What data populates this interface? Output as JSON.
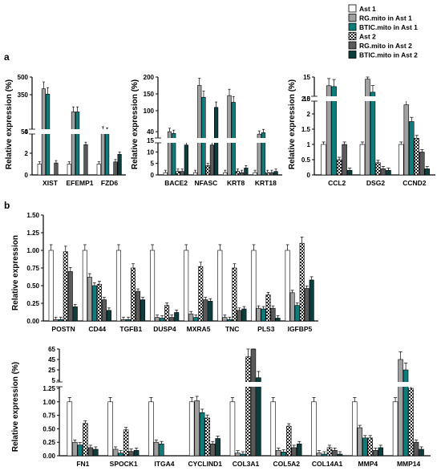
{
  "panel_labels": [
    "a",
    "b"
  ],
  "legend": {
    "items": [
      {
        "label": "Ast 1",
        "fill": "#ffffff",
        "pattern": "none"
      },
      {
        "label": "RG.mito in Ast 1",
        "fill": "#a0a0a0",
        "pattern": "none"
      },
      {
        "label": "BTIC.mito in Ast 1",
        "fill": "#0f7c7c",
        "pattern": "none"
      },
      {
        "label": "Ast 2",
        "fill": "#ffffff",
        "pattern": "check"
      },
      {
        "label": "RG.mito in Ast 2",
        "fill": "#5a5a5a",
        "pattern": "none"
      },
      {
        "label": "BTIC.mito in Ast 2",
        "fill": "#0d3d3d",
        "pattern": "none"
      }
    ]
  },
  "chart_data": [
    {
      "type": "bar",
      "panel": "a",
      "ylabel": "Relative expression (%)",
      "categories": [
        "XIST",
        "EFEMP1",
        "FZD6"
      ],
      "series": [
        {
          "name": "Ast 1",
          "values": [
            1,
            1,
            1
          ]
        },
        {
          "name": "RG.mito in Ast 1",
          "values": [
            400,
            210,
            60
          ]
        },
        {
          "name": "BTIC.mito in Ast 1",
          "values": [
            355,
            210,
            52
          ]
        },
        {
          "name": "Ast 2",
          "values": [
            0,
            0,
            0
          ]
        },
        {
          "name": "RG.mito in Ast 2",
          "values": [
            1.1,
            2.8,
            1.2
          ]
        },
        {
          "name": "BTIC.mito in Ast 2",
          "values": [
            0,
            0,
            1.9
          ]
        }
      ],
      "yticks": [
        "0",
        "2",
        "4",
        "50",
        "350",
        "500"
      ],
      "broken_axis": true
    },
    {
      "type": "bar",
      "panel": "a",
      "ylabel": "Relative expression (%)",
      "categories": [
        "BACE2",
        "NFASC",
        "KRT8",
        "KRT18"
      ],
      "series": [
        {
          "name": "Ast 1",
          "values": [
            1,
            1,
            1,
            1
          ]
        },
        {
          "name": "RG.mito in Ast 1",
          "values": [
            40,
            175,
            145,
            33
          ]
        },
        {
          "name": "BTIC.mito in Ast 1",
          "values": [
            35,
            140,
            125,
            37
          ]
        },
        {
          "name": "Ast 2",
          "values": [
            1.5,
            4,
            1.5,
            1
          ]
        },
        {
          "name": "RG.mito in Ast 2",
          "values": [
            1.5,
            13,
            1,
            1
          ]
        },
        {
          "name": "BTIC.mito in Ast 2",
          "values": [
            13,
            110,
            3,
            1.5
          ]
        }
      ],
      "yticks": [
        "0",
        "5",
        "10",
        "15",
        "40",
        "100",
        "150",
        "200"
      ],
      "broken_axis": true
    },
    {
      "type": "bar",
      "panel": "a",
      "ylabel": "Relative expression (%)",
      "categories": [
        "CCL2",
        "DSG2",
        "CCND2"
      ],
      "series": [
        {
          "name": "Ast 1",
          "values": [
            1,
            1,
            1
          ]
        },
        {
          "name": "RG.mito in Ast 1",
          "values": [
            13,
            14.5,
            2.3
          ]
        },
        {
          "name": "BTIC.mito in Ast 1",
          "values": [
            12.8,
            11.5,
            1.75
          ]
        },
        {
          "name": "Ast 2",
          "values": [
            0.5,
            0.4,
            1.2
          ]
        },
        {
          "name": "RG.mito in Ast 2",
          "values": [
            1,
            0.2,
            0.75
          ]
        },
        {
          "name": "BTIC.mito in Ast 2",
          "values": [
            0.15,
            0.15,
            0.2
          ]
        }
      ],
      "yticks": [
        "0",
        "0.5",
        "1",
        "1.5",
        "2",
        "2.5",
        "10",
        "15"
      ],
      "broken_axis": true
    },
    {
      "type": "bar",
      "panel": "b",
      "ylabel": "Relative expression",
      "categories": [
        "POSTN",
        "CD44",
        "TGFB1",
        "DUSP4",
        "MXRA5",
        "TNC",
        "PLS3",
        "IGFBP5"
      ],
      "series": [
        {
          "name": "Ast 1",
          "values": [
            1,
            1,
            1,
            1,
            1,
            1,
            1,
            1
          ]
        },
        {
          "name": "RG.mito in Ast 1",
          "values": [
            0.02,
            0.62,
            0.02,
            0.05,
            0.1,
            0.05,
            0.18,
            0.4
          ]
        },
        {
          "name": "BTIC.mito in Ast 1",
          "values": [
            0.02,
            0.5,
            0.02,
            0.04,
            0.05,
            0.02,
            0.17,
            0.22
          ]
        },
        {
          "name": "Ast 2",
          "values": [
            0.98,
            0.52,
            0.75,
            0.22,
            0.77,
            0.75,
            0.37,
            1.1
          ]
        },
        {
          "name": "RG.mito in Ast 2",
          "values": [
            0.7,
            0.3,
            0.42,
            0.05,
            0.3,
            0.15,
            0.18,
            0.46
          ]
        },
        {
          "name": "BTIC.mito in Ast 2",
          "values": [
            0.2,
            0.15,
            0.3,
            0.12,
            0.28,
            0.17,
            0.04,
            0.58
          ]
        }
      ],
      "yticks": [
        "0.00",
        "0.25",
        "0.50",
        "0.75",
        "1.00",
        "1.25",
        "1.50"
      ],
      "ylim": [
        0,
        1.5
      ]
    },
    {
      "type": "bar",
      "panel": "b",
      "ylabel": "Relative expression (%)",
      "categories": [
        "FN1",
        "SPOCK1",
        "ITGA4",
        "CYCLIND1",
        "COL3A1",
        "COL5A2",
        "COL14A1",
        "MMP4",
        "MMP14"
      ],
      "series": [
        {
          "name": "Ast 1",
          "values": [
            1,
            1,
            1,
            1,
            1,
            1,
            1,
            1,
            1
          ]
        },
        {
          "name": "RG.mito in Ast 1",
          "values": [
            0.25,
            0.12,
            0.25,
            1.02,
            0.05,
            0.1,
            0.05,
            0.52,
            45
          ]
        },
        {
          "name": "BTIC.mito in Ast 1",
          "values": [
            0.2,
            0.05,
            0.22,
            0.8,
            0.03,
            0.07,
            0.03,
            0.33,
            25
          ]
        },
        {
          "name": "Ast 2",
          "values": [
            0.6,
            0.48,
            0,
            0.7,
            50,
            0.55,
            0.15,
            0.33,
            1.25
          ]
        },
        {
          "name": "RG.mito in Ast 2",
          "values": [
            0.15,
            0.08,
            0,
            0.22,
            66,
            0.15,
            0.1,
            0.1,
            0.25
          ]
        },
        {
          "name": "BTIC.mito in Ast 2",
          "values": [
            0.12,
            0.1,
            0,
            0.32,
            10,
            0.22,
            0.03,
            0.15,
            0.12
          ]
        }
      ],
      "yticks": [
        "0.00",
        "0.25",
        "0.50",
        "0.75",
        "1.00",
        "1.25",
        "5",
        "25",
        "45",
        "65"
      ],
      "broken_axis": true
    }
  ]
}
